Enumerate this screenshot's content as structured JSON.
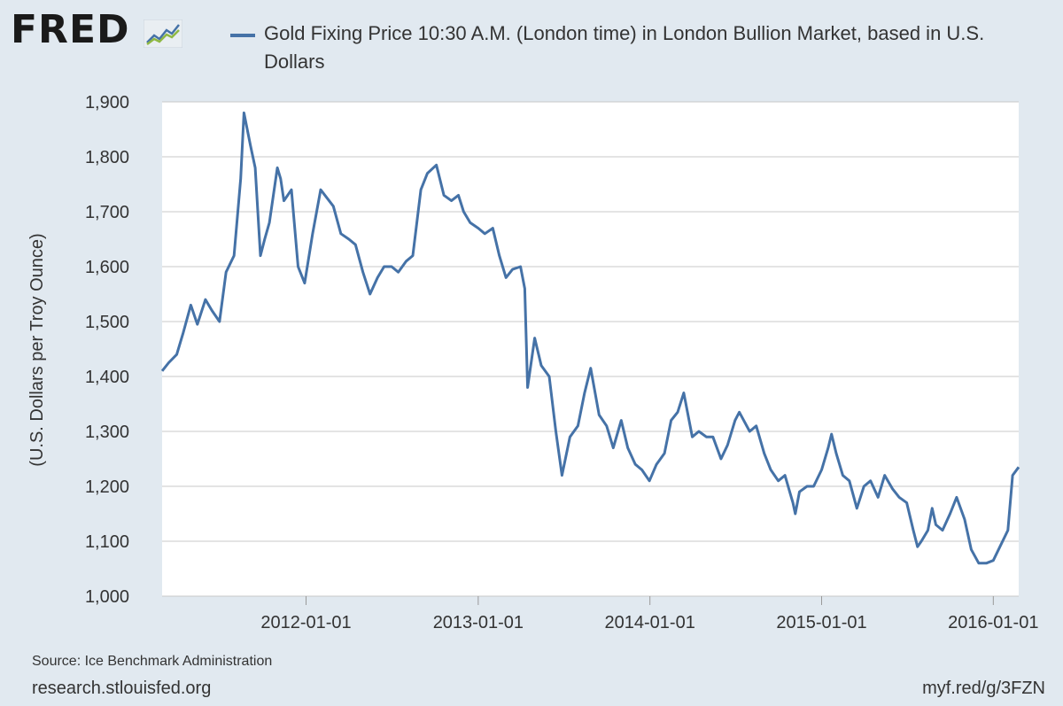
{
  "header": {
    "logo_text": "FRED",
    "legend_text": "Gold Fixing Price 10:30 A.M. (London time) in London Bullion Market, based in U.S. Dollars"
  },
  "footer": {
    "source": "Source: Ice Benchmark Administration",
    "site": "research.stlouisfed.org",
    "short_url": "myf.red/g/3FZN"
  },
  "colors": {
    "series": "#4572a7",
    "background": "#e1e9f0",
    "plot": "#ffffff",
    "grid": "#c8c8c8"
  },
  "chart_data": {
    "type": "line",
    "ylabel": "(U.S. Dollars per Troy Ounce)",
    "xlabel": "",
    "ylim": [
      1000,
      1900
    ],
    "xlim": [
      "2011-03-01",
      "2016-02-24"
    ],
    "yticks": [
      1000,
      1100,
      1200,
      1300,
      1400,
      1500,
      1600,
      1700,
      1800,
      1900
    ],
    "ytick_labels": [
      "1,000",
      "1,100",
      "1,200",
      "1,300",
      "1,400",
      "1,500",
      "1,600",
      "1,700",
      "1,800",
      "1,900"
    ],
    "xticks": [
      "2012-01-01",
      "2013-01-01",
      "2014-01-01",
      "2015-01-01",
      "2016-01-01"
    ],
    "grid": true,
    "series": [
      {
        "color": "#4572a7",
        "x": [
          "2011-03-01",
          "2011-03-15",
          "2011-04-01",
          "2011-04-15",
          "2011-05-01",
          "2011-05-15",
          "2011-06-01",
          "2011-06-15",
          "2011-07-01",
          "2011-07-15",
          "2011-08-01",
          "2011-08-15",
          "2011-08-22",
          "2011-09-05",
          "2011-09-15",
          "2011-09-26",
          "2011-10-05",
          "2011-10-15",
          "2011-11-01",
          "2011-11-08",
          "2011-11-15",
          "2011-12-01",
          "2011-12-15",
          "2011-12-29",
          "2012-01-15",
          "2012-02-01",
          "2012-02-28",
          "2012-03-15",
          "2012-04-01",
          "2012-04-15",
          "2012-05-01",
          "2012-05-16",
          "2012-06-01",
          "2012-06-15",
          "2012-07-01",
          "2012-07-15",
          "2012-08-01",
          "2012-08-15",
          "2012-09-01",
          "2012-09-15",
          "2012-10-04",
          "2012-10-20",
          "2012-11-05",
          "2012-11-20",
          "2012-12-01",
          "2012-12-15",
          "2013-01-01",
          "2013-01-15",
          "2013-02-01",
          "2013-02-15",
          "2013-03-01",
          "2013-03-15",
          "2013-04-01",
          "2013-04-10",
          "2013-04-16",
          "2013-05-01",
          "2013-05-15",
          "2013-06-01",
          "2013-06-15",
          "2013-06-28",
          "2013-07-15",
          "2013-08-01",
          "2013-08-15",
          "2013-08-28",
          "2013-09-15",
          "2013-10-01",
          "2013-10-15",
          "2013-11-01",
          "2013-11-15",
          "2013-12-01",
          "2013-12-15",
          "2013-12-31",
          "2014-01-15",
          "2014-02-01",
          "2014-02-15",
          "2014-03-01",
          "2014-03-14",
          "2014-04-01",
          "2014-04-15",
          "2014-05-01",
          "2014-05-15",
          "2014-06-01",
          "2014-06-15",
          "2014-07-01",
          "2014-07-10",
          "2014-08-01",
          "2014-08-15",
          "2014-09-01",
          "2014-09-15",
          "2014-10-01",
          "2014-10-15",
          "2014-11-01",
          "2014-11-06",
          "2014-11-15",
          "2014-12-01",
          "2014-12-15",
          "2015-01-01",
          "2015-01-15",
          "2015-01-22",
          "2015-02-01",
          "2015-02-15",
          "2015-03-01",
          "2015-03-17",
          "2015-04-01",
          "2015-04-15",
          "2015-05-01",
          "2015-05-15",
          "2015-06-01",
          "2015-06-15",
          "2015-07-01",
          "2015-07-15",
          "2015-07-24",
          "2015-08-01",
          "2015-08-15",
          "2015-08-24",
          "2015-09-01",
          "2015-09-15",
          "2015-10-01",
          "2015-10-15",
          "2015-11-01",
          "2015-11-15",
          "2015-12-01",
          "2015-12-17",
          "2016-01-01",
          "2016-01-15",
          "2016-02-01",
          "2016-02-11",
          "2016-02-24"
        ],
        "y": [
          1410,
          1425,
          1440,
          1480,
          1530,
          1495,
          1540,
          1520,
          1500,
          1590,
          1620,
          1760,
          1880,
          1820,
          1780,
          1620,
          1650,
          1680,
          1780,
          1760,
          1720,
          1740,
          1600,
          1570,
          1660,
          1740,
          1710,
          1660,
          1650,
          1640,
          1590,
          1550,
          1580,
          1600,
          1600,
          1590,
          1610,
          1620,
          1740,
          1770,
          1785,
          1730,
          1720,
          1730,
          1700,
          1680,
          1670,
          1660,
          1670,
          1620,
          1580,
          1595,
          1600,
          1560,
          1380,
          1470,
          1420,
          1400,
          1300,
          1220,
          1290,
          1310,
          1370,
          1415,
          1330,
          1310,
          1270,
          1320,
          1270,
          1240,
          1230,
          1210,
          1240,
          1260,
          1320,
          1335,
          1370,
          1290,
          1300,
          1290,
          1290,
          1250,
          1275,
          1320,
          1335,
          1300,
          1310,
          1260,
          1230,
          1210,
          1220,
          1170,
          1150,
          1190,
          1200,
          1200,
          1230,
          1270,
          1295,
          1260,
          1220,
          1210,
          1160,
          1200,
          1210,
          1180,
          1220,
          1195,
          1180,
          1170,
          1120,
          1090,
          1100,
          1120,
          1160,
          1130,
          1120,
          1150,
          1180,
          1140,
          1085,
          1060,
          1060,
          1065,
          1090,
          1120,
          1220,
          1235
        ]
      }
    ]
  }
}
